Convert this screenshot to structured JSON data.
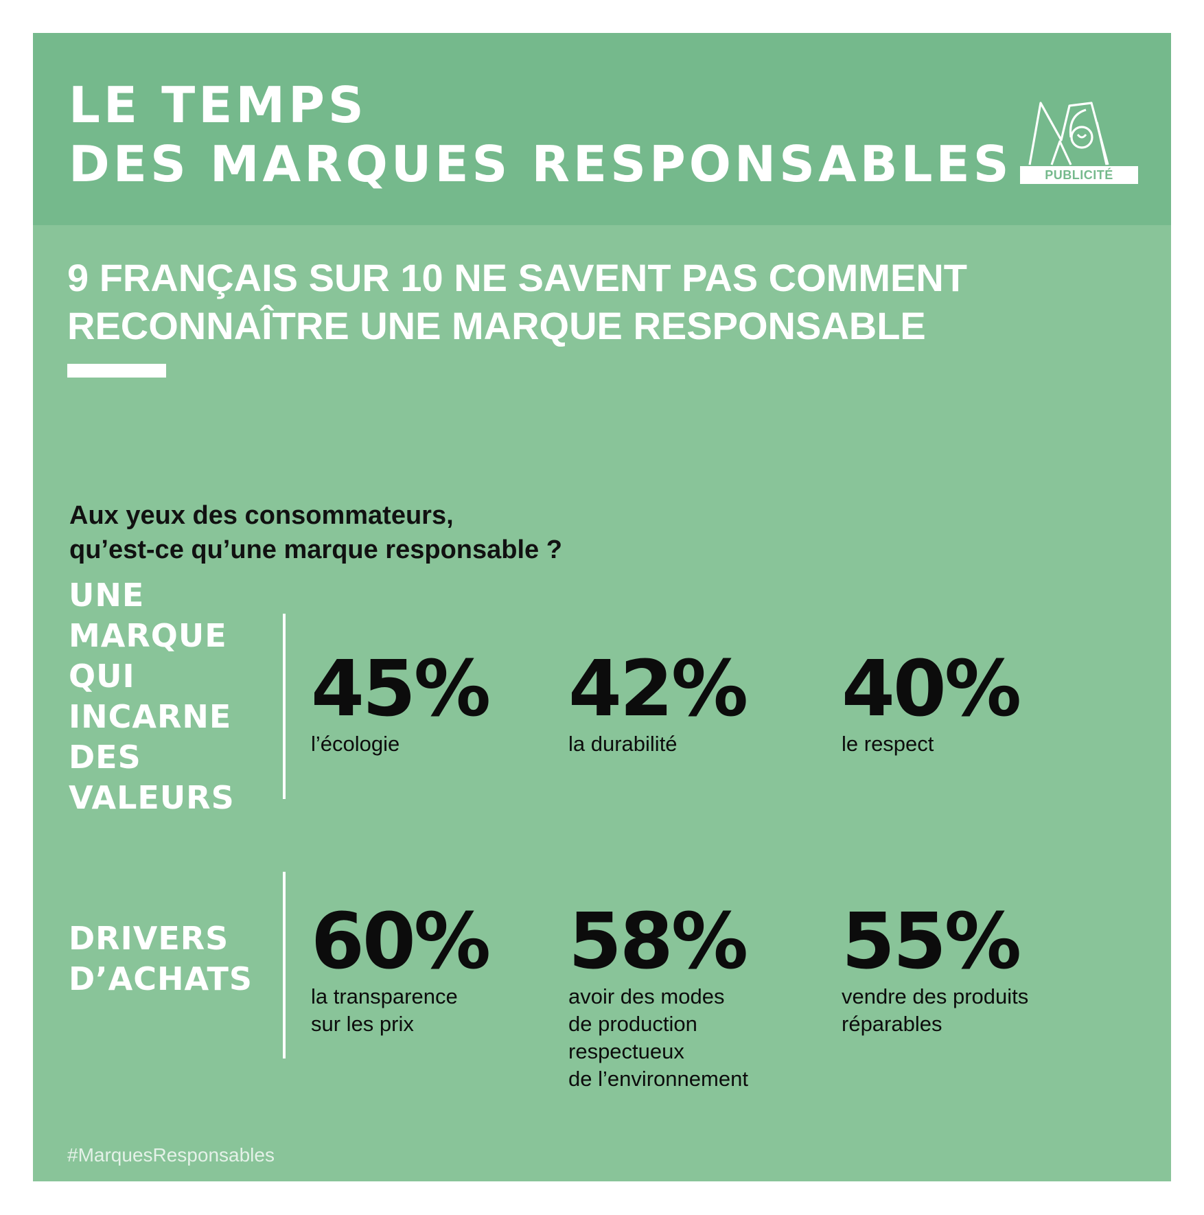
{
  "brand": {
    "title_lines": [
      "LE TEMPS",
      "DES MARQUES RESPONSABLES"
    ],
    "logo_label": "PUBLICITÉ",
    "logo_icon": "m6-logo-icon"
  },
  "headline": {
    "lines": [
      "9 FRANÇAIS SUR 10 NE SAVENT PAS COMMENT",
      "RECONNAÎTRE UNE MARQUE RESPONSABLE"
    ]
  },
  "question": {
    "lines": [
      "Aux yeux des consommateurs,",
      "qu’est-ce qu’une marque responsable ?"
    ]
  },
  "sections": [
    {
      "label_lines": [
        "UNE",
        "MARQUE",
        "QUI",
        "INCARNE",
        "DES",
        "VALEURS"
      ],
      "stats": [
        {
          "value": "45%",
          "desc_lines": [
            "l’écologie"
          ]
        },
        {
          "value": "42%",
          "desc_lines": [
            "la durabilité"
          ]
        },
        {
          "value": "40%",
          "desc_lines": [
            "le respect"
          ]
        }
      ]
    },
    {
      "label_lines": [
        "DRIVERS",
        "D’ACHATS"
      ],
      "stats": [
        {
          "value": "60%",
          "desc_lines": [
            "la transparence",
            "sur les prix"
          ]
        },
        {
          "value": "58%",
          "desc_lines": [
            "avoir des modes",
            "de production",
            "respectueux",
            "de l’environnement"
          ]
        },
        {
          "value": "55%",
          "desc_lines": [
            "vendre des produits",
            "réparables"
          ]
        }
      ]
    }
  ],
  "hashtag": "#MarquesResponsables",
  "colors": {
    "header_green": "#75b98c",
    "body_green": "#89c499",
    "text_dark": "#0c0c0c",
    "text_light": "#ffffff"
  }
}
